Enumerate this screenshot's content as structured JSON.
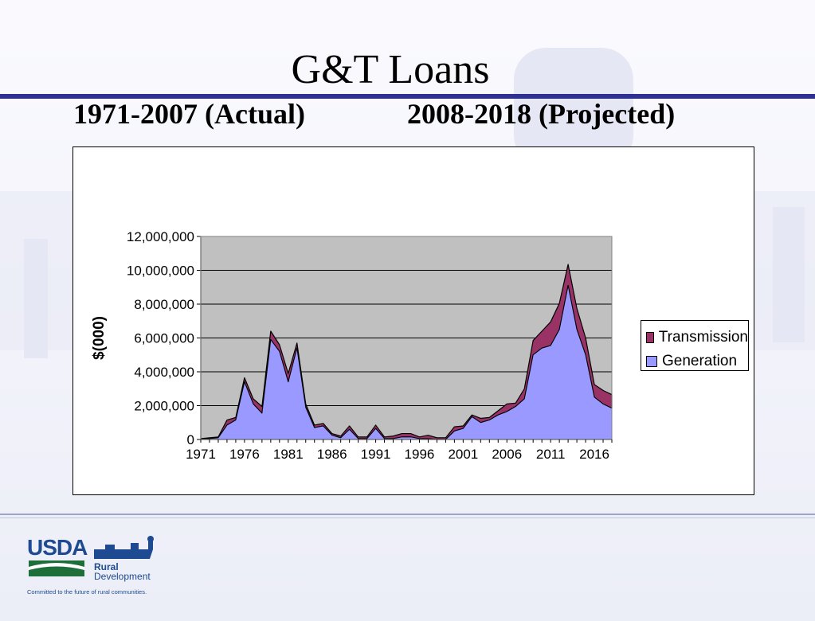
{
  "slide": {
    "title": "G&T Loans",
    "subtitle_left": "1971-2007 (Actual)",
    "subtitle_right": "2008-2018 (Projected)"
  },
  "logo": {
    "usda": "USDA",
    "rural": "Rural",
    "development": "Development",
    "tagline": "Committed to the future of rural communities."
  },
  "chart_data": {
    "type": "area",
    "stacked": true,
    "ylabel": "$(000)",
    "ylim": [
      0,
      12000000
    ],
    "y_ticks": [
      0,
      2000000,
      4000000,
      6000000,
      8000000,
      10000000,
      12000000
    ],
    "y_tick_labels": [
      "0",
      "2,000,000",
      "4,000,000",
      "6,000,000",
      "8,000,000",
      "10,000,000",
      "12,000,000"
    ],
    "x": [
      1971,
      1972,
      1973,
      1974,
      1975,
      1976,
      1977,
      1978,
      1979,
      1980,
      1981,
      1982,
      1983,
      1984,
      1985,
      1986,
      1987,
      1988,
      1989,
      1990,
      1991,
      1992,
      1993,
      1994,
      1995,
      1996,
      1997,
      1998,
      1999,
      2000,
      2001,
      2002,
      2003,
      2004,
      2005,
      2006,
      2007,
      2008,
      2009,
      2010,
      2011,
      2012,
      2013,
      2014,
      2015,
      2016,
      2017,
      2018
    ],
    "x_tick_labels": [
      "1971",
      "1976",
      "1981",
      "1986",
      "1991",
      "1996",
      "2001",
      "2006",
      "2011",
      "2016"
    ],
    "legend_position": "right",
    "grid": true,
    "colors": {
      "plot_bg": "#c0c0c0",
      "generation": "#9999ff",
      "transmission": "#993366"
    },
    "series": [
      {
        "name": "Generation",
        "values": [
          0,
          50000,
          100000,
          850000,
          1150000,
          3400000,
          2100000,
          1550000,
          5900000,
          5200000,
          3400000,
          5400000,
          1900000,
          700000,
          800000,
          250000,
          100000,
          600000,
          50000,
          50000,
          650000,
          50000,
          50000,
          150000,
          150000,
          50000,
          50000,
          0,
          0,
          500000,
          650000,
          1350000,
          1000000,
          1150000,
          1450000,
          1650000,
          1950000,
          2400000,
          5000000,
          5400000,
          5550000,
          6500000,
          9100000,
          6500000,
          5000000,
          2500000,
          2100000,
          1850000
        ]
      },
      {
        "name": "Transmission",
        "values": [
          50000,
          50000,
          50000,
          300000,
          150000,
          250000,
          300000,
          400000,
          500000,
          400000,
          500000,
          300000,
          200000,
          150000,
          150000,
          100000,
          100000,
          200000,
          100000,
          100000,
          200000,
          100000,
          150000,
          200000,
          200000,
          100000,
          200000,
          100000,
          100000,
          250000,
          150000,
          100000,
          250000,
          150000,
          250000,
          450000,
          200000,
          600000,
          850000,
          1000000,
          1400000,
          1550000,
          1250000,
          1250000,
          1000000,
          750000,
          800000,
          800000
        ]
      }
    ]
  }
}
